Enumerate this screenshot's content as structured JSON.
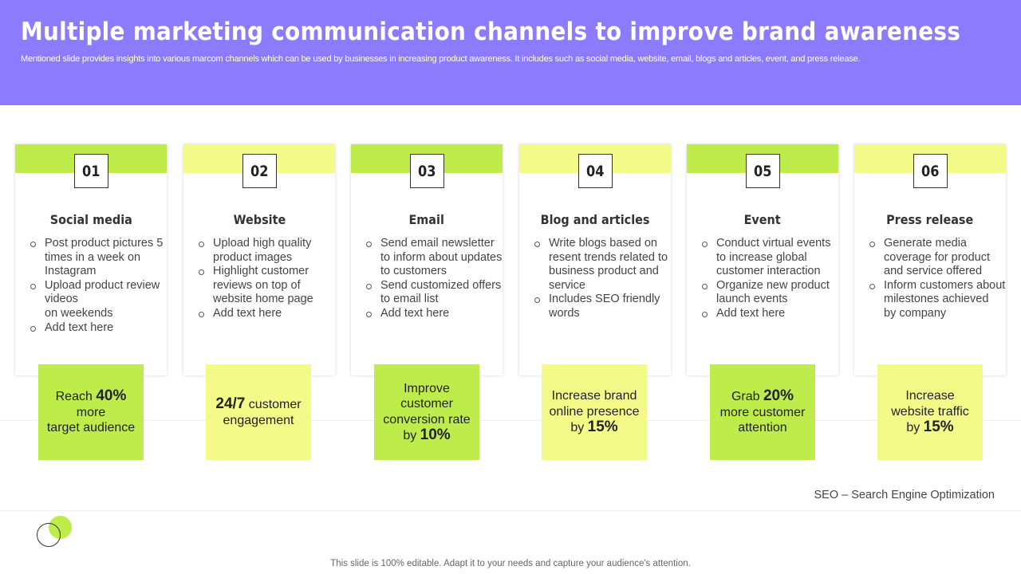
{
  "header": {
    "title": "Multiple marketing communication channels to improve brand awareness",
    "subtitle": "Mentioned slide provides insights into various marcom channels which can be used by businesses in increasing product awareness. It includes such as social media, website, email, blogs and articles, event, and press release."
  },
  "colors": {
    "header_purple": "#8c7bfc",
    "accent_green": "#bdec4b",
    "accent_yellow": "#f4fa88"
  },
  "cards": [
    {
      "number": "01",
      "title": "Social media",
      "bullets": [
        "Post product pictures 5 times in a week on Instagram",
        "Upload product review videos\non weekends",
        "Add text here"
      ],
      "stat": {
        "pre": "Reach ",
        "highlight": "40%",
        "post": "more\ntarget audience"
      }
    },
    {
      "number": "02",
      "title": "Website",
      "bullets": [
        "Upload high quality product images",
        "Highlight customer reviews on top of website home page",
        "Add text here"
      ],
      "stat": {
        "pre": "",
        "highlight": "24/7",
        "post": " customer engagement"
      }
    },
    {
      "number": "03",
      "title": "Email",
      "bullets": [
        "Send email newsletter to inform about updates to customers",
        "Send customized offers to email list",
        "Add text here"
      ],
      "stat": {
        "pre": "Improve customer conversion rate by ",
        "highlight": "10%",
        "post": ""
      }
    },
    {
      "number": "04",
      "title": "Blog and articles",
      "bullets": [
        "Write blogs based on resent trends related to business product and service",
        "Includes SEO friendly words"
      ],
      "stat": {
        "pre": "Increase brand online presence by ",
        "highlight": "15%",
        "post": ""
      }
    },
    {
      "number": "05",
      "title": "Event",
      "bullets": [
        "Conduct virtual events to increase global customer interaction",
        "Organize new product\nlaunch events",
        "Add text here"
      ],
      "stat": {
        "pre": "Grab ",
        "highlight": "20%",
        "post": " more customer attention"
      }
    },
    {
      "number": "06",
      "title": "Press release",
      "bullets": [
        "Generate media coverage for product and service offered",
        "Inform customers about milestones achieved\nby company"
      ],
      "stat": {
        "pre": "Increase website traffic by ",
        "highlight": "15%",
        "post": ""
      }
    }
  ],
  "footnote": "SEO – Search Engine Optimization",
  "bottom_note": "This slide is 100% editable. Adapt it to your needs and capture your audience's attention."
}
